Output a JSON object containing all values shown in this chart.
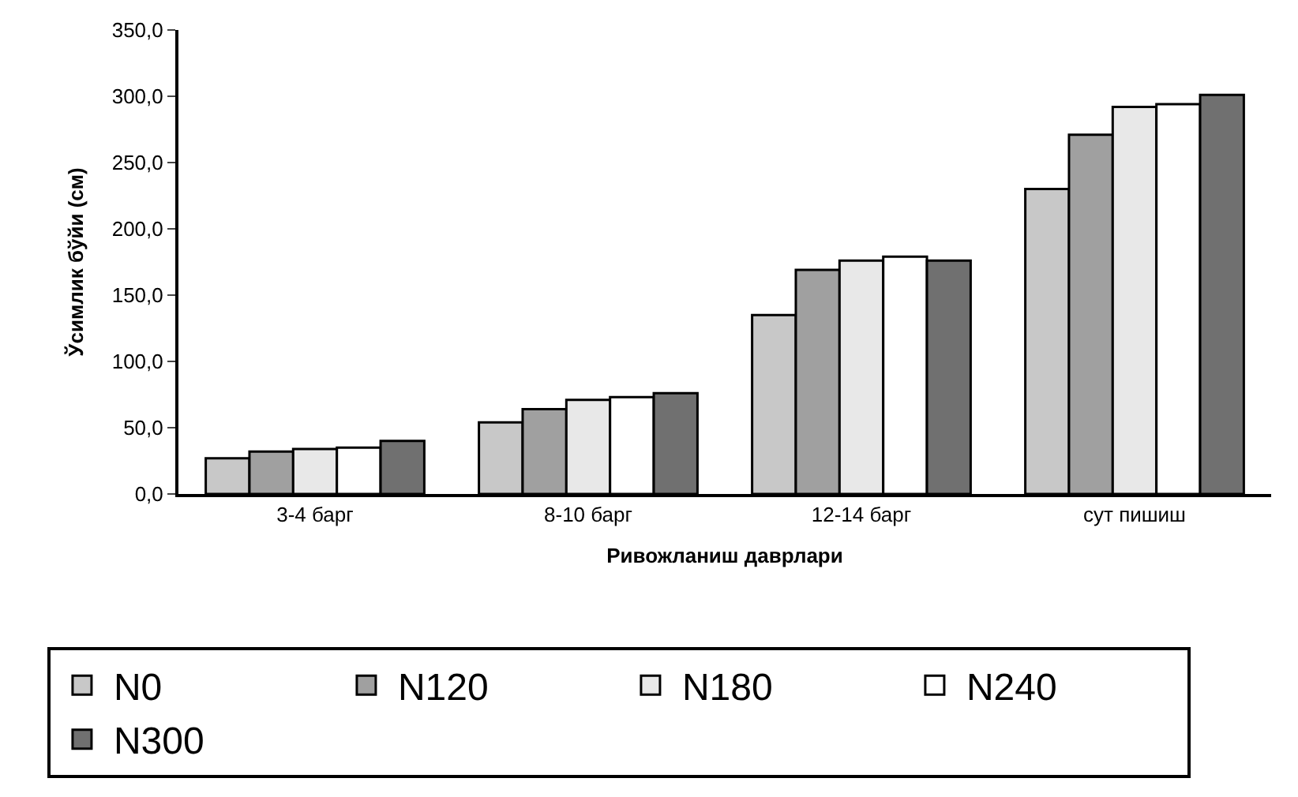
{
  "chart_data": {
    "type": "bar",
    "xlabel": "Ривожланиш даврлари",
    "ylabel": "Ўсимлик бўйи (см)",
    "categories": [
      "3-4 барг",
      "8-10 барг",
      "12-14 барг",
      "сут пишиш"
    ],
    "series": [
      {
        "name": "N0",
        "color": "#c8c8c8",
        "values": [
          27,
          54,
          135,
          230
        ]
      },
      {
        "name": "N120",
        "color": "#a0a0a0",
        "values": [
          32,
          64,
          169,
          271
        ]
      },
      {
        "name": "N180",
        "color": "#e8e8e8",
        "values": [
          34,
          71,
          176,
          292
        ]
      },
      {
        "name": "N240",
        "color": "#ffffff",
        "values": [
          35,
          73,
          179,
          294
        ]
      },
      {
        "name": "N300",
        "color": "#707070",
        "values": [
          40,
          76,
          176,
          301
        ]
      }
    ],
    "ylim": [
      0,
      350
    ],
    "yticks": [
      {
        "value": 0,
        "label": "0,0"
      },
      {
        "value": 50,
        "label": "50,0"
      },
      {
        "value": 100,
        "label": "100,0"
      },
      {
        "value": 150,
        "label": "150,0"
      },
      {
        "value": 200,
        "label": "200,0"
      },
      {
        "value": 250,
        "label": "250,0"
      },
      {
        "value": 300,
        "label": "300,0"
      },
      {
        "value": 350,
        "label": "350,0"
      }
    ],
    "legend": "bottom"
  }
}
